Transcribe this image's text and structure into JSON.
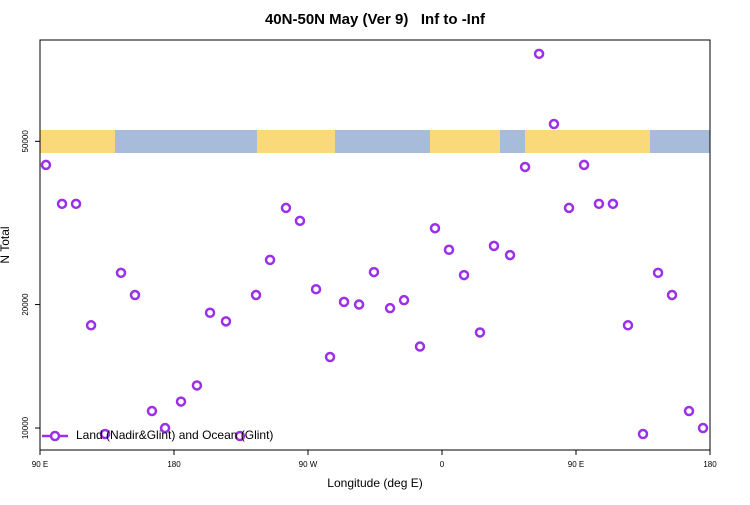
{
  "chart_data": {
    "type": "scatter",
    "title": "40N-50N May (Ver 9)   Inf to -Inf",
    "x_label": "Longitude (deg E)",
    "y_label": "N Total",
    "xlim": [
      90,
      540
    ],
    "xticks": [
      {
        "value": 90,
        "label": "90 E"
      },
      {
        "value": 180,
        "label": "180"
      },
      {
        "value": 270,
        "label": "90 W"
      },
      {
        "value": 360,
        "label": "0"
      },
      {
        "value": 450,
        "label": "90 E"
      },
      {
        "value": 540,
        "label": "180"
      }
    ],
    "ylim": [
      8840,
      88300
    ],
    "yticks": [
      10000,
      20000,
      50000
    ],
    "log_y": true,
    "legend": "lower left",
    "series": [
      {
        "name": "Land (Nadir&Glint) and Ocean (Glint)",
        "color": "#9b30e8",
        "x": [
          94,
          104.8,
          114.2,
          124.3,
          133.7,
          144.4,
          153.8,
          165.2,
          174,
          184.7,
          195.4,
          204.2,
          214.9,
          224.3,
          235.1,
          244.5,
          255.2,
          264.6,
          275.4,
          284.8,
          294.2,
          304.3,
          314.3,
          325.1,
          334.5,
          345.2,
          355.3,
          364.7,
          374.8,
          385.5,
          394.9,
          405.7,
          415.8,
          425.2,
          435.2,
          445.3,
          455.4,
          465.4,
          474.8,
          484.9,
          495,
          505.1,
          514.5,
          525.9,
          535.3
        ],
        "values": [
          43800,
          35200,
          35200,
          17800,
          9670,
          23900,
          21100,
          11000,
          10000,
          11600,
          12700,
          19100,
          18200,
          9560,
          21100,
          25700,
          34400,
          32000,
          21800,
          14900,
          20300,
          20000,
          24000,
          19600,
          20500,
          15800,
          30700,
          27200,
          23600,
          17100,
          27800,
          26400,
          43300,
          81700,
          55100,
          34400,
          43800,
          35200,
          35200,
          17800,
          9670,
          23900,
          21100,
          11000,
          10000
        ]
      }
    ]
  }
}
